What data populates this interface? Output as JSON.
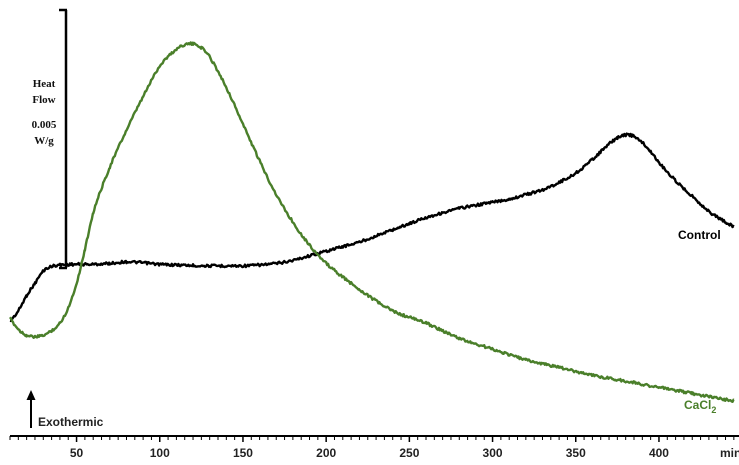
{
  "chart_data": {
    "type": "line",
    "title": "",
    "xlabel": "",
    "x_unit": "min",
    "ylabel": "",
    "xlim": [
      10,
      445
    ],
    "x_ticks": [
      50,
      100,
      150,
      200,
      250,
      300,
      350,
      400
    ],
    "grid": false,
    "scale_bar": {
      "label_line1": "Heat",
      "label_line2": "Flow",
      "value": "0.005",
      "unit": "W/g"
    },
    "annotation": {
      "text": "Exothermic",
      "direction": "up"
    },
    "colors": {
      "control": "#000000",
      "cacl2": "#4a7f2a"
    },
    "series": [
      {
        "name": "Control",
        "label_sub": "",
        "x": [
          10,
          15,
          20,
          25,
          30,
          35,
          40,
          50,
          60,
          70,
          80,
          90,
          100,
          110,
          120,
          130,
          140,
          150,
          160,
          170,
          180,
          190,
          200,
          210,
          220,
          230,
          240,
          250,
          260,
          270,
          280,
          290,
          300,
          310,
          320,
          330,
          340,
          350,
          360,
          370,
          375,
          380,
          385,
          390,
          395,
          400,
          410,
          420,
          430,
          440,
          445
        ],
        "y": [
          -0.05,
          0.3,
          0.8,
          1.2,
          1.6,
          1.75,
          1.8,
          1.82,
          1.82,
          1.85,
          1.9,
          1.87,
          1.82,
          1.8,
          1.78,
          1.77,
          1.77,
          1.77,
          1.8,
          1.85,
          1.95,
          2.1,
          2.25,
          2.4,
          2.55,
          2.75,
          2.95,
          3.15,
          3.35,
          3.5,
          3.65,
          3.75,
          3.85,
          3.95,
          4.1,
          4.25,
          4.5,
          4.8,
          5.25,
          5.75,
          5.95,
          6.05,
          6.0,
          5.8,
          5.5,
          5.15,
          4.55,
          4.05,
          3.55,
          3.2,
          3.05
        ]
      },
      {
        "name": "CaCl",
        "label_sub": "2",
        "x": [
          10,
          15,
          20,
          25,
          30,
          35,
          40,
          45,
          50,
          55,
          60,
          70,
          80,
          90,
          100,
          110,
          115,
          120,
          125,
          130,
          140,
          150,
          160,
          170,
          180,
          190,
          200,
          220,
          240,
          260,
          280,
          300,
          320,
          340,
          360,
          380,
          400,
          420,
          440,
          445
        ],
        "y": [
          0.05,
          -0.3,
          -0.5,
          -0.55,
          -0.5,
          -0.35,
          -0.1,
          0.4,
          1.2,
          2.3,
          3.5,
          5.0,
          6.2,
          7.3,
          8.3,
          8.85,
          9.0,
          9.02,
          8.9,
          8.6,
          7.6,
          6.4,
          5.2,
          4.1,
          3.2,
          2.45,
          1.85,
          1.0,
          0.3,
          -0.1,
          -0.6,
          -0.95,
          -1.3,
          -1.55,
          -1.8,
          -2.0,
          -2.2,
          -2.4,
          -2.6,
          -2.65
        ]
      }
    ]
  }
}
